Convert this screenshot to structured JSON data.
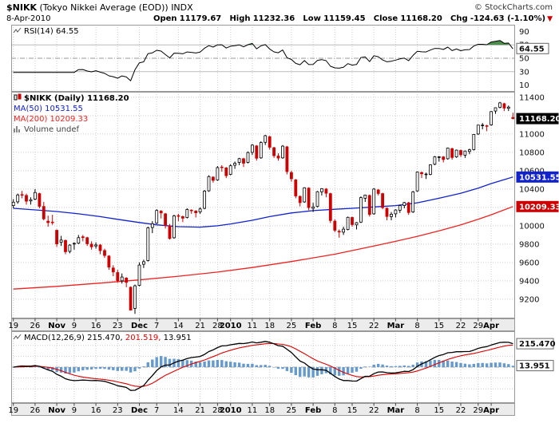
{
  "header": {
    "symbol": "$NIKK",
    "name": "(Tokyo Nikkei Average (EOD))",
    "exchange": "INDX",
    "date": "8-Apr-2010",
    "copyright": "© StockCharts.com",
    "arrow": "▼",
    "quote": [
      {
        "label": "Open",
        "value": "11179.67"
      },
      {
        "label": "High",
        "value": "11232.36"
      },
      {
        "label": "Low",
        "value": "11159.45"
      },
      {
        "label": "Close",
        "value": "11168.20"
      },
      {
        "label": "Chg",
        "value": "-124.63 (-1.10%)"
      }
    ]
  },
  "panels": {
    "rsi": {
      "label": "RSI(14) 64.55",
      "value_box": "64.55"
    },
    "price": {
      "legend": [
        "$NIKK (Daily) 11168.20",
        "MA(50) 10531.55",
        "MA(200) 10209.33",
        "Volume undef"
      ],
      "boxes": [
        {
          "text": "11168.20",
          "value": 11168.2,
          "bg": "#000000",
          "fg": "#ffffff"
        },
        {
          "text": "10531.55",
          "value": 10531.55,
          "bg": "#1122cc",
          "fg": "#ffffff"
        },
        {
          "text": "10209.33",
          "value": 10209.33,
          "bg": "#cc0000",
          "fg": "#ffffff"
        }
      ]
    },
    "macd": {
      "parts": [
        "MACD(12,26,9) 215.470,",
        "201.519,",
        "13.951"
      ],
      "boxes": [
        {
          "text": "215.470",
          "value": 215.47
        },
        {
          "text": "13.951",
          "value": 13.951
        }
      ]
    }
  },
  "colors": {
    "up": "#000000",
    "up_fill": "#ffffff",
    "down": "#cc0000",
    "ma50": "#1122cc",
    "ma200": "#ee2222",
    "rsi": "#000000",
    "rsi_fill": "#2d7a2d",
    "macd": "#000000",
    "signal": "#dd0000",
    "hist": "#6699cc",
    "grid": "#cccccc",
    "border": "#999999",
    "axis_bg": "#ececec",
    "chg_arrow": "#cc0000",
    "volume_legend": "#444444",
    "macd_part3": "#000000"
  },
  "chart_data": [
    {
      "type": "candlestick",
      "title": "$NIKK (Daily)",
      "last_close": 11168.2,
      "ylim": [
        8990,
        11460
      ],
      "grid_min": 9200,
      "grid_max": 11400,
      "grid_step": 200,
      "axis_labels": [
        11400,
        11000,
        10800,
        10600,
        10400,
        10000,
        9800,
        9600,
        9400,
        9200
      ],
      "xticks": [
        {
          "i": 0,
          "label": "19",
          "bold": false
        },
        {
          "i": 5,
          "label": "26",
          "bold": false
        },
        {
          "i": 10,
          "label": "Nov",
          "bold": true
        },
        {
          "i": 14,
          "label": "9",
          "bold": false
        },
        {
          "i": 19,
          "label": "16",
          "bold": false
        },
        {
          "i": 24,
          "label": "23",
          "bold": false
        },
        {
          "i": 29,
          "label": "Dec",
          "bold": true
        },
        {
          "i": 33,
          "label": "7",
          "bold": false
        },
        {
          "i": 38,
          "label": "14",
          "bold": false
        },
        {
          "i": 43,
          "label": "21",
          "bold": false
        },
        {
          "i": 47,
          "label": "28",
          "bold": false
        },
        {
          "i": 50,
          "label": "2010",
          "bold": true
        },
        {
          "i": 55,
          "label": "11",
          "bold": false
        },
        {
          "i": 59,
          "label": "18",
          "bold": false
        },
        {
          "i": 64,
          "label": "25",
          "bold": false
        },
        {
          "i": 69,
          "label": "Feb",
          "bold": true
        },
        {
          "i": 74,
          "label": "8",
          "bold": false
        },
        {
          "i": 78,
          "label": "15",
          "bold": false
        },
        {
          "i": 83,
          "label": "22",
          "bold": false
        },
        {
          "i": 88,
          "label": "Mar",
          "bold": true
        },
        {
          "i": 93,
          "label": "8",
          "bold": false
        },
        {
          "i": 98,
          "label": "15",
          "bold": false
        },
        {
          "i": 103,
          "label": "22",
          "bold": false
        },
        {
          "i": 107,
          "label": "29",
          "bold": false
        },
        {
          "i": 110,
          "label": "Apr",
          "bold": true
        }
      ],
      "ma50_label": 10531.55,
      "ma200_label": 10209.33,
      "ma50_anchors": [
        [
          0,
          10190
        ],
        [
          10,
          10155
        ],
        [
          15,
          10130
        ],
        [
          20,
          10100
        ],
        [
          24,
          10070
        ],
        [
          29,
          10035
        ],
        [
          33,
          10010
        ],
        [
          38,
          9990
        ],
        [
          43,
          9985
        ],
        [
          47,
          10000
        ],
        [
          50,
          10020
        ],
        [
          55,
          10060
        ],
        [
          59,
          10100
        ],
        [
          64,
          10140
        ],
        [
          69,
          10165
        ],
        [
          74,
          10180
        ],
        [
          78,
          10190
        ],
        [
          83,
          10205
        ],
        [
          88,
          10220
        ],
        [
          93,
          10250
        ],
        [
          98,
          10300
        ],
        [
          103,
          10355
        ],
        [
          107,
          10410
        ],
        [
          110,
          10460
        ],
        [
          115,
          10531.55
        ]
      ],
      "ma200_anchors": [
        [
          0,
          9310
        ],
        [
          10,
          9340
        ],
        [
          20,
          9375
        ],
        [
          29,
          9410
        ],
        [
          38,
          9450
        ],
        [
          47,
          9495
        ],
        [
          55,
          9545
        ],
        [
          64,
          9610
        ],
        [
          74,
          9690
        ],
        [
          83,
          9780
        ],
        [
          88,
          9830
        ],
        [
          93,
          9885
        ],
        [
          98,
          9945
        ],
        [
          103,
          10010
        ],
        [
          107,
          10070
        ],
        [
          110,
          10120
        ],
        [
          115,
          10209.33
        ]
      ],
      "candles": [
        [
          10220,
          10290,
          10190,
          10257
        ],
        [
          10260,
          10350,
          10240,
          10336
        ],
        [
          10340,
          10380,
          10300,
          10333
        ],
        [
          10330,
          10350,
          10230,
          10267
        ],
        [
          10270,
          10310,
          10230,
          10283
        ],
        [
          10290,
          10400,
          10280,
          10362
        ],
        [
          10350,
          10360,
          10190,
          10212
        ],
        [
          10210,
          10260,
          10060,
          10075
        ],
        [
          10050,
          10110,
          9990,
          10034
        ],
        [
          10040,
          10120,
          10010,
          10035
        ],
        [
          9950,
          9960,
          9770,
          9802
        ],
        [
          9820,
          9890,
          9780,
          9844
        ],
        [
          9840,
          9850,
          9690,
          9717
        ],
        [
          9720,
          9800,
          9700,
          9789
        ],
        [
          9800,
          9820,
          9740,
          9808
        ],
        [
          9810,
          9900,
          9800,
          9870
        ],
        [
          9880,
          9900,
          9830,
          9871
        ],
        [
          9870,
          9880,
          9780,
          9804
        ],
        [
          9800,
          9830,
          9740,
          9770
        ],
        [
          9780,
          9820,
          9750,
          9791
        ],
        [
          9790,
          9800,
          9690,
          9729
        ],
        [
          9730,
          9750,
          9650,
          9676
        ],
        [
          9670,
          9680,
          9520,
          9549
        ],
        [
          9540,
          9570,
          9450,
          9497
        ],
        [
          9490,
          9520,
          9380,
          9401
        ],
        [
          9400,
          9480,
          9370,
          9441
        ],
        [
          9430,
          9440,
          9330,
          9383
        ],
        [
          9330,
          9340,
          9076,
          9081
        ],
        [
          9100,
          9360,
          9040,
          9346
        ],
        [
          9350,
          9600,
          9340,
          9572
        ],
        [
          9580,
          9630,
          9540,
          9608
        ],
        [
          9620,
          9990,
          9610,
          9977
        ],
        [
          9980,
          10050,
          9920,
          10022
        ],
        [
          10030,
          10180,
          10020,
          10167
        ],
        [
          10160,
          10170,
          10080,
          10140
        ],
        [
          10130,
          10140,
          9970,
          10004
        ],
        [
          10000,
          10020,
          9850,
          9862
        ],
        [
          9870,
          10120,
          9860,
          10108
        ],
        [
          10110,
          10130,
          10050,
          10106
        ],
        [
          10100,
          10110,
          10040,
          10083
        ],
        [
          10090,
          10190,
          10080,
          10177
        ],
        [
          10170,
          10180,
          10130,
          10164
        ],
        [
          10160,
          10170,
          10090,
          10142
        ],
        [
          10150,
          10200,
          10130,
          10183
        ],
        [
          10190,
          10390,
          10180,
          10378
        ],
        [
          10380,
          10550,
          10370,
          10536
        ],
        [
          10530,
          10540,
          10470,
          10494
        ],
        [
          10500,
          10650,
          10490,
          10634
        ],
        [
          10640,
          10660,
          10590,
          10638
        ],
        [
          10630,
          10640,
          10520,
          10546
        ],
        [
          10560,
          10670,
          10550,
          10654
        ],
        [
          10660,
          10700,
          10620,
          10681
        ],
        [
          10690,
          10740,
          10660,
          10731
        ],
        [
          10730,
          10740,
          10640,
          10681
        ],
        [
          10690,
          10810,
          10680,
          10798
        ],
        [
          10800,
          10890,
          10770,
          10879
        ],
        [
          10870,
          10880,
          10710,
          10735
        ],
        [
          10740,
          10920,
          10730,
          10907
        ],
        [
          10910,
          10990,
          10880,
          10982
        ],
        [
          10970,
          10980,
          10830,
          10855
        ],
        [
          10850,
          10860,
          10740,
          10764
        ],
        [
          10760,
          10790,
          10710,
          10737
        ],
        [
          10740,
          10880,
          10730,
          10868
        ],
        [
          10860,
          10870,
          10560,
          10590
        ],
        [
          10580,
          10600,
          10480,
          10512
        ],
        [
          10500,
          10510,
          10300,
          10325
        ],
        [
          10320,
          10330,
          10210,
          10252
        ],
        [
          10260,
          10420,
          10250,
          10414
        ],
        [
          10410,
          10420,
          10170,
          10198
        ],
        [
          10190,
          10250,
          10150,
          10205
        ],
        [
          10210,
          10380,
          10200,
          10371
        ],
        [
          10370,
          10410,
          10330,
          10404
        ],
        [
          10400,
          10410,
          10310,
          10355
        ],
        [
          10350,
          10360,
          10030,
          10057
        ],
        [
          10050,
          10070,
          9930,
          9951
        ],
        [
          9940,
          9960,
          9870,
          9932
        ],
        [
          9930,
          9990,
          9900,
          9963
        ],
        [
          9960,
          10100,
          9950,
          10092
        ],
        [
          10090,
          10100,
          9990,
          10013
        ],
        [
          10010,
          10040,
          9960,
          10034
        ],
        [
          10040,
          10320,
          10030,
          10307
        ],
        [
          10300,
          10340,
          10260,
          10335
        ],
        [
          10330,
          10340,
          10100,
          10123
        ],
        [
          10130,
          10410,
          10120,
          10400
        ],
        [
          10390,
          10400,
          10330,
          10352
        ],
        [
          10350,
          10360,
          10180,
          10198
        ],
        [
          10190,
          10200,
          10060,
          10101
        ],
        [
          10100,
          10150,
          10060,
          10126
        ],
        [
          10130,
          10180,
          10090,
          10172
        ],
        [
          10170,
          10230,
          10140,
          10221
        ],
        [
          10220,
          10260,
          10190,
          10253
        ],
        [
          10250,
          10260,
          10120,
          10145
        ],
        [
          10150,
          10380,
          10140,
          10369
        ],
        [
          10380,
          10590,
          10370,
          10585
        ],
        [
          10580,
          10590,
          10520,
          10567
        ],
        [
          10560,
          10580,
          10510,
          10563
        ],
        [
          10560,
          10670,
          10550,
          10664
        ],
        [
          10670,
          10760,
          10660,
          10751
        ],
        [
          10750,
          10760,
          10700,
          10751
        ],
        [
          10750,
          10760,
          10690,
          10721
        ],
        [
          10730,
          10850,
          10720,
          10846
        ],
        [
          10840,
          10850,
          10720,
          10744
        ],
        [
          10750,
          10830,
          10740,
          10824
        ],
        [
          10820,
          10830,
          10750,
          10774
        ],
        [
          10770,
          10820,
          10740,
          10815
        ],
        [
          10810,
          10840,
          10780,
          10828
        ],
        [
          10830,
          11000,
          10820,
          10996
        ],
        [
          11000,
          11100,
          10990,
          11097
        ],
        [
          11090,
          11120,
          11050,
          11097
        ],
        [
          11090,
          11100,
          11030,
          11089
        ],
        [
          11100,
          11250,
          11090,
          11244
        ],
        [
          11250,
          11290,
          11220,
          11286
        ],
        [
          11290,
          11350,
          11280,
          11339
        ],
        [
          11330,
          11340,
          11250,
          11282
        ],
        [
          11280,
          11310,
          11250,
          11292.83
        ],
        [
          11179.67,
          11232.36,
          11159.45,
          11168.2
        ]
      ]
    },
    {
      "type": "line",
      "name": "RSI(14)",
      "period": 14,
      "derived_from": "closes of chart_data[0].candles",
      "ylim": [
        0,
        100
      ],
      "levels": [
        70,
        50,
        30
      ],
      "axis_labels": [
        90,
        70,
        50,
        30,
        10
      ],
      "last_value": 64.55,
      "overbought_fill_above": 70
    },
    {
      "type": "line",
      "name": "MACD(12,26,9)",
      "fast": 12,
      "slow": 26,
      "signal": 9,
      "derived_from": "closes of chart_data[0].candles",
      "ylim": [
        -330,
        330
      ],
      "hgrid": [
        -200,
        -100,
        100,
        200
      ],
      "last_values": {
        "macd": 215.47,
        "signal": 201.519,
        "histogram": 13.951
      }
    }
  ]
}
